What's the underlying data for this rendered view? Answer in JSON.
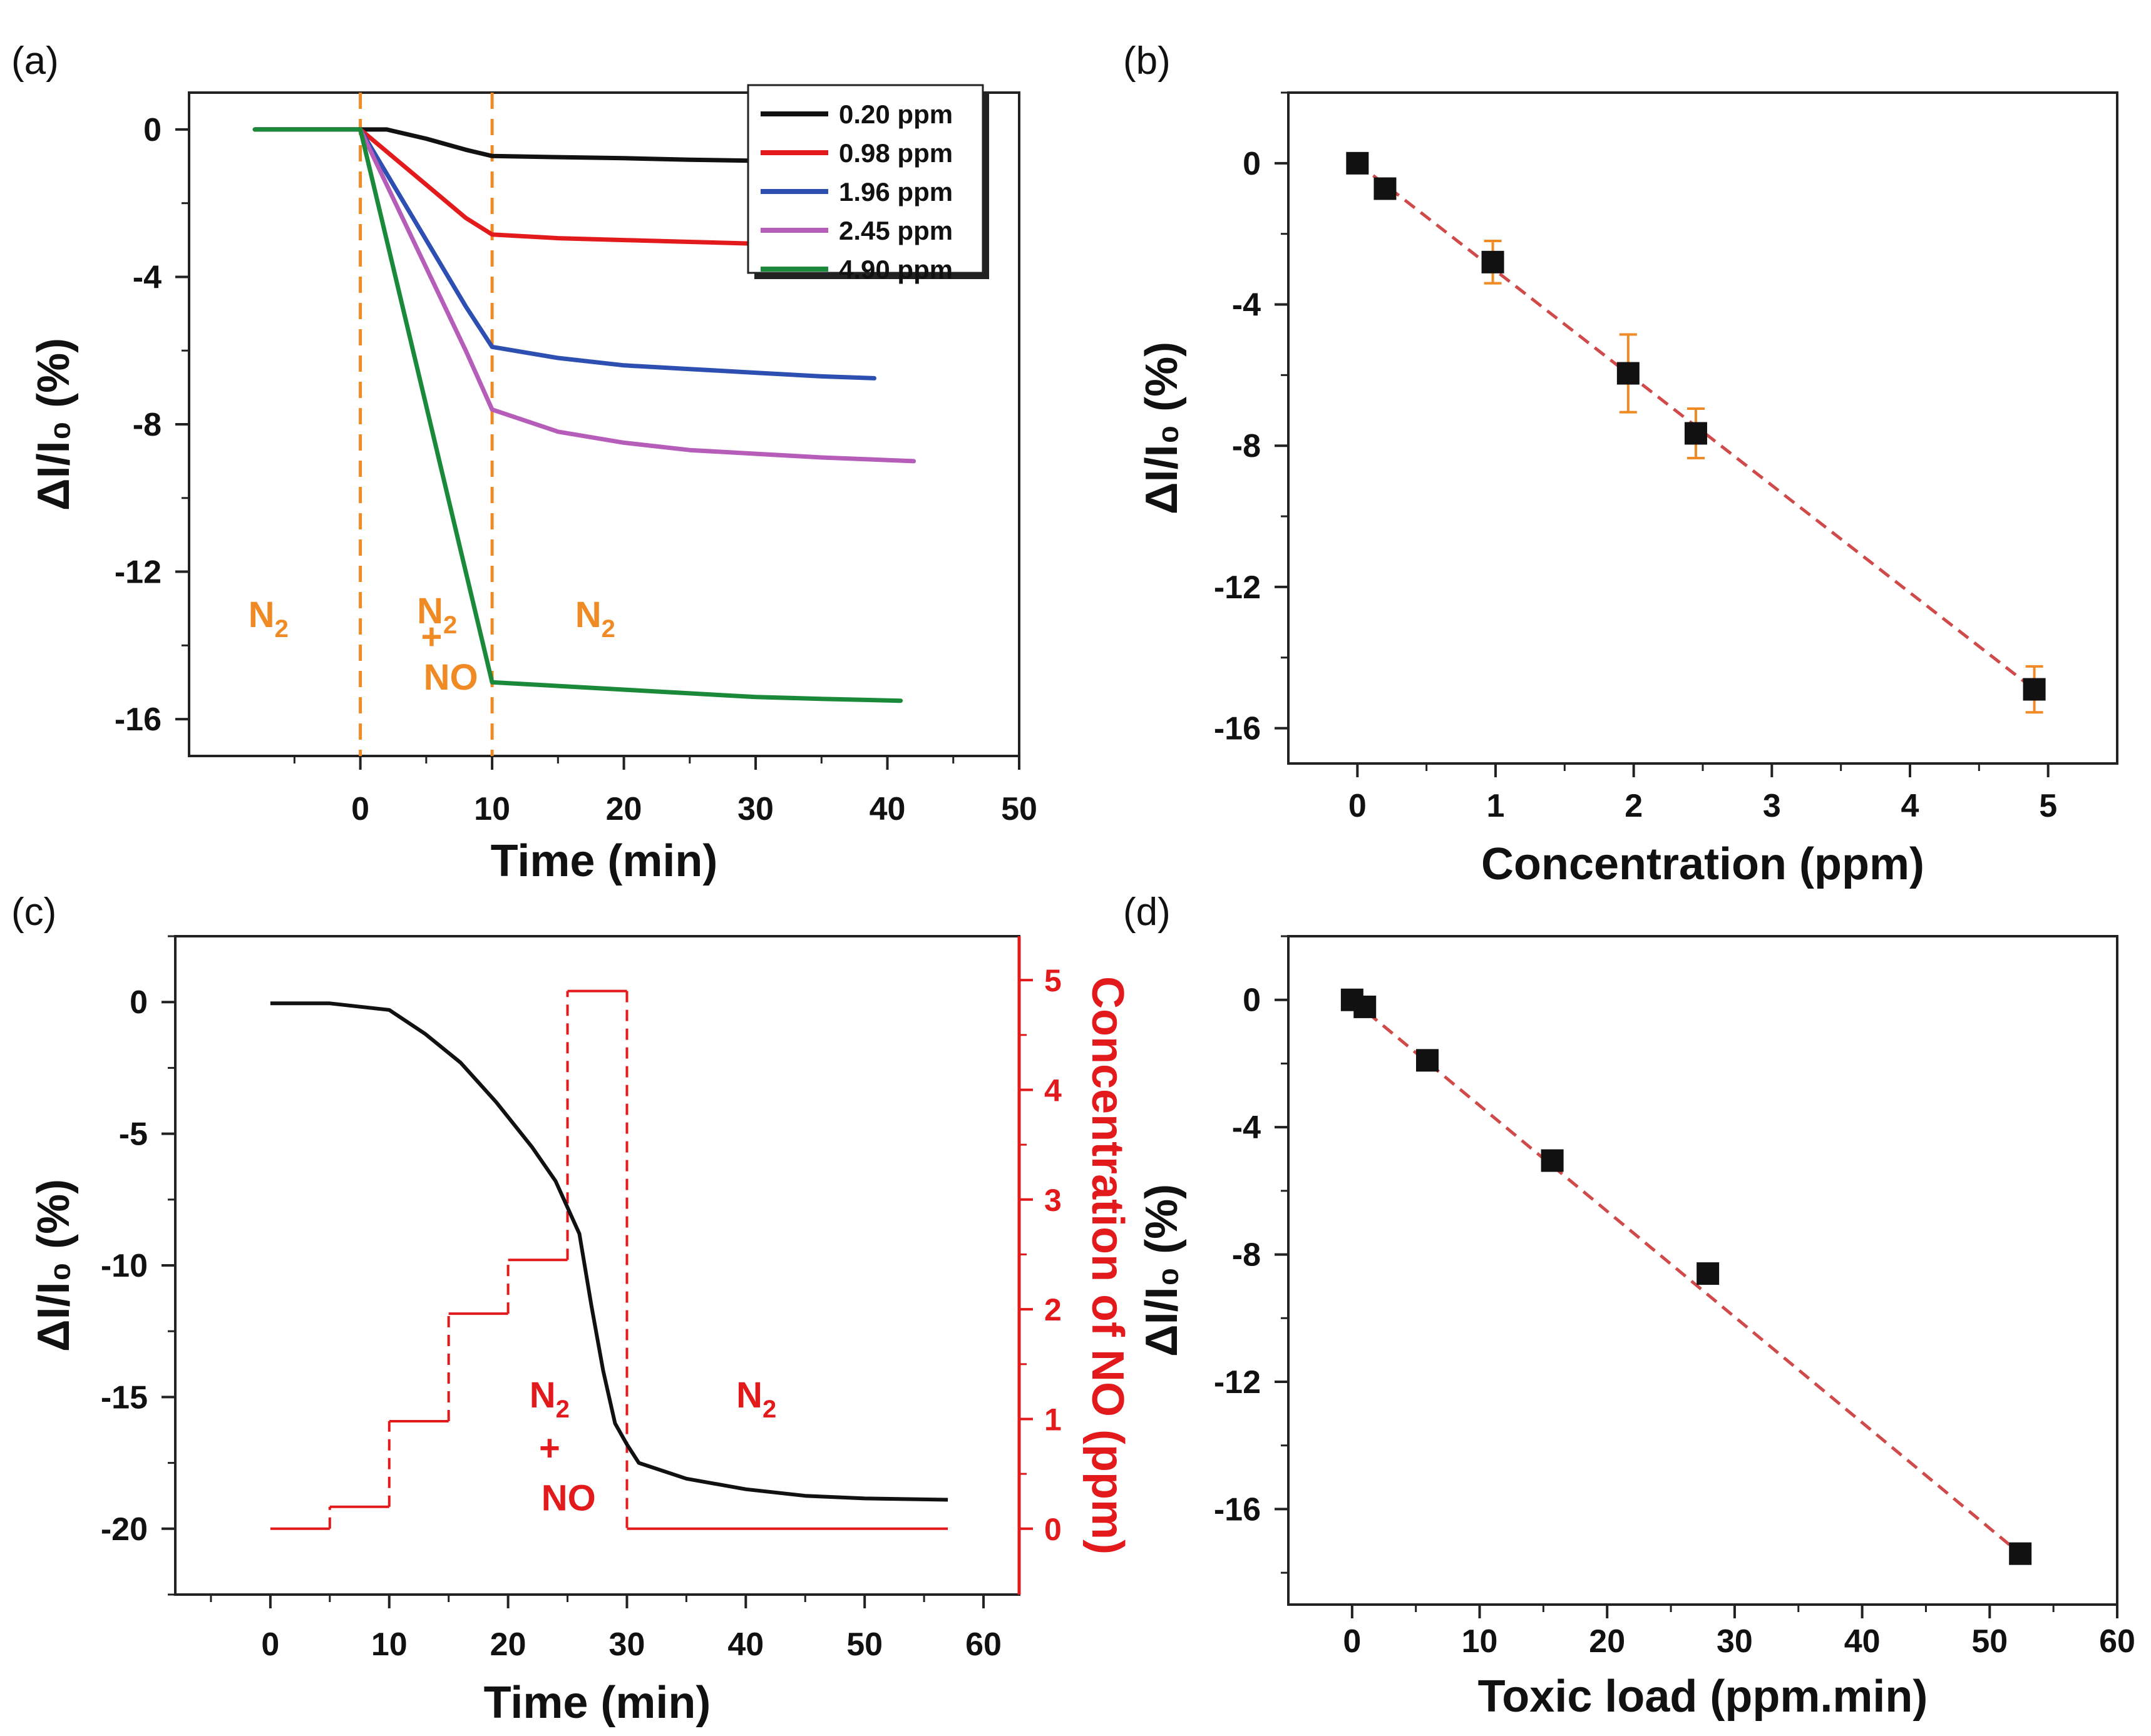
{
  "chart_data": [
    {
      "panel": "(a)",
      "type": "line",
      "xlabel": "Time (min)",
      "ylabel": "ΔI/I₀ (%)",
      "xlim": [
        -13,
        50
      ],
      "ylim": [
        -17,
        1
      ],
      "xticks": [
        0,
        10,
        20,
        30,
        40,
        50
      ],
      "yticks": [
        0,
        -4,
        -8,
        -12,
        -16
      ],
      "xtick_labels": [
        "0",
        "10",
        "20",
        "30",
        "40",
        "50"
      ],
      "ytick_labels": [
        "0",
        "-4",
        "-8",
        "-12",
        "-16"
      ],
      "vlines": [
        0,
        10
      ],
      "annotations": [
        {
          "main": "N",
          "sub": "2",
          "x": -8.5,
          "y": -13.5
        },
        {
          "main": "N",
          "sub": "2",
          "x": 4.3,
          "y": -13.4
        },
        {
          "main": "+",
          "sub": "",
          "x": 4.6,
          "y": -14.1
        },
        {
          "main": "NO",
          "sub": "",
          "x": 4.8,
          "y": -15.2
        },
        {
          "main": "N",
          "sub": "2",
          "x": 16.3,
          "y": -13.5
        }
      ],
      "series": [
        {
          "name": "0.20 ppm",
          "color": "#111111",
          "x": [
            -8,
            -2,
            0,
            2,
            5,
            8,
            10,
            15,
            20,
            25,
            30
          ],
          "y": [
            0,
            0,
            0,
            0,
            -0.25,
            -0.55,
            -0.72,
            -0.75,
            -0.78,
            -0.82,
            -0.85
          ]
        },
        {
          "name": "0.98 ppm",
          "color": "#e31a1c",
          "x": [
            -8,
            -2,
            0,
            2,
            5,
            8,
            10,
            15,
            20,
            25,
            30
          ],
          "y": [
            0,
            0,
            0,
            -0.6,
            -1.5,
            -2.4,
            -2.85,
            -2.95,
            -3.0,
            -3.05,
            -3.1
          ]
        },
        {
          "name": "1.96 ppm",
          "color": "#2e4fb2",
          "x": [
            -8,
            -2,
            0,
            2,
            4,
            6,
            8,
            10,
            15,
            20,
            25,
            30,
            35,
            39
          ],
          "y": [
            0,
            0,
            0,
            -1.2,
            -2.4,
            -3.6,
            -4.8,
            -5.9,
            -6.2,
            -6.4,
            -6.5,
            -6.6,
            -6.7,
            -6.75
          ]
        },
        {
          "name": "2.45 ppm",
          "color": "#b55db8",
          "x": [
            -8,
            -2,
            0,
            2,
            4,
            6,
            8,
            10,
            15,
            20,
            25,
            30,
            35,
            42
          ],
          "y": [
            0,
            0,
            0,
            -1.5,
            -3.0,
            -4.5,
            -6.0,
            -7.6,
            -8.2,
            -8.5,
            -8.7,
            -8.8,
            -8.9,
            -9.0
          ]
        },
        {
          "name": "4.90 ppm",
          "color": "#1a8a3a",
          "x": [
            -8,
            -2,
            0,
            2,
            4,
            6,
            8,
            10,
            15,
            20,
            25,
            30,
            35,
            41
          ],
          "y": [
            0,
            0,
            0,
            -3.0,
            -6.0,
            -9.0,
            -12.0,
            -15.0,
            -15.1,
            -15.2,
            -15.3,
            -15.4,
            -15.45,
            -15.5
          ]
        }
      ]
    },
    {
      "panel": "(b)",
      "type": "scatter",
      "xlabel": "Concentration (ppm)",
      "ylabel": "ΔI/I₀ (%)",
      "xlim": [
        -0.5,
        5.5
      ],
      "ylim": [
        -17,
        2
      ],
      "xticks": [
        0,
        1,
        2,
        3,
        4,
        5
      ],
      "yticks": [
        0,
        -4,
        -8,
        -12,
        -16
      ],
      "xtick_labels": [
        "0",
        "1",
        "2",
        "3",
        "4",
        "5"
      ],
      "ytick_labels": [
        "0",
        "-4",
        "-8",
        "-12",
        "-16"
      ],
      "points": [
        {
          "x": 0,
          "y": 0,
          "err": 0
        },
        {
          "x": 0.2,
          "y": -0.72,
          "err": 0.25
        },
        {
          "x": 0.98,
          "y": -2.8,
          "err": 0.6
        },
        {
          "x": 1.96,
          "y": -5.95,
          "err": 1.1
        },
        {
          "x": 2.45,
          "y": -7.65,
          "err": 0.7
        },
        {
          "x": 4.9,
          "y": -14.9,
          "err": 0.65
        }
      ],
      "fit": {
        "x": [
          0,
          4.9
        ],
        "y": [
          0,
          -14.9
        ],
        "color": "#d04a4a"
      }
    },
    {
      "panel": "(c)",
      "type": "line",
      "xlabel": "Time (min)",
      "ylabel": "ΔI/I₀ (%)",
      "ylabel_right": "Concentration of NO (ppm)",
      "xlim": [
        -8,
        63
      ],
      "ylim": [
        -22.5,
        2.5
      ],
      "ylim_right": [
        -0.6,
        5.4
      ],
      "xticks": [
        0,
        10,
        20,
        30,
        40,
        50,
        60
      ],
      "yticks": [
        0,
        -5,
        -10,
        -15,
        -20
      ],
      "yticks_right": [
        0,
        1,
        2,
        3,
        4,
        5
      ],
      "xtick_labels": [
        "0",
        "10",
        "20",
        "30",
        "40",
        "50",
        "60"
      ],
      "ytick_labels": [
        "0",
        "-5",
        "-10",
        "-15",
        "-20"
      ],
      "ytick_labels_right": [
        "0",
        "1",
        "2",
        "3",
        "4",
        "5"
      ],
      "annotations": [
        {
          "main": "N",
          "sub": "2",
          "x": 21.8,
          "y": -15.4
        },
        {
          "main": "+",
          "sub": "",
          "x": 22.6,
          "y": -17.4
        },
        {
          "main": "NO",
          "sub": "",
          "x": 22.8,
          "y": -19.3
        },
        {
          "main": "N",
          "sub": "2",
          "x": 39.2,
          "y": -15.4
        }
      ],
      "response": {
        "color": "#111111",
        "x": [
          0,
          5,
          10,
          13,
          16,
          19,
          22,
          24,
          25,
          26,
          27,
          28,
          29,
          30,
          31,
          35,
          40,
          45,
          50,
          57
        ],
        "y": [
          -0.05,
          -0.05,
          -0.3,
          -1.2,
          -2.3,
          -3.8,
          -5.5,
          -6.8,
          -7.8,
          -8.8,
          -11.5,
          -14.0,
          -16.0,
          -16.8,
          -17.5,
          -18.1,
          -18.5,
          -18.75,
          -18.85,
          -18.9
        ]
      },
      "concentration_steps": {
        "color": "#e31a1c",
        "x": [
          0,
          5,
          5,
          10,
          10,
          15,
          15,
          20,
          20,
          25,
          25,
          30,
          30,
          57
        ],
        "y": [
          0,
          0,
          0.2,
          0.2,
          0.98,
          0.98,
          1.96,
          1.96,
          2.45,
          2.45,
          4.9,
          4.9,
          0,
          0
        ]
      }
    },
    {
      "panel": "(d)",
      "type": "scatter",
      "xlabel": "Toxic load (ppm.min)",
      "ylabel": "ΔI/I₀ (%)",
      "xlim": [
        -5,
        60
      ],
      "ylim": [
        -19,
        2
      ],
      "xticks": [
        0,
        10,
        20,
        30,
        40,
        50,
        60
      ],
      "yticks": [
        0,
        -4,
        -8,
        -12,
        -16
      ],
      "xtick_labels": [
        "0",
        "10",
        "20",
        "30",
        "40",
        "50",
        "60"
      ],
      "ytick_labels": [
        "0",
        "-4",
        "-8",
        "-12",
        "-16"
      ],
      "points": [
        {
          "x": 0,
          "y": 0
        },
        {
          "x": 1,
          "y": -0.22
        },
        {
          "x": 5.9,
          "y": -1.9
        },
        {
          "x": 15.7,
          "y": -5.05
        },
        {
          "x": 27.9,
          "y": -8.6
        },
        {
          "x": 52.4,
          "y": -17.4
        }
      ],
      "fit": {
        "x": [
          0,
          52.4
        ],
        "y": [
          0,
          -17.4
        ],
        "color": "#d04a4a"
      }
    }
  ]
}
